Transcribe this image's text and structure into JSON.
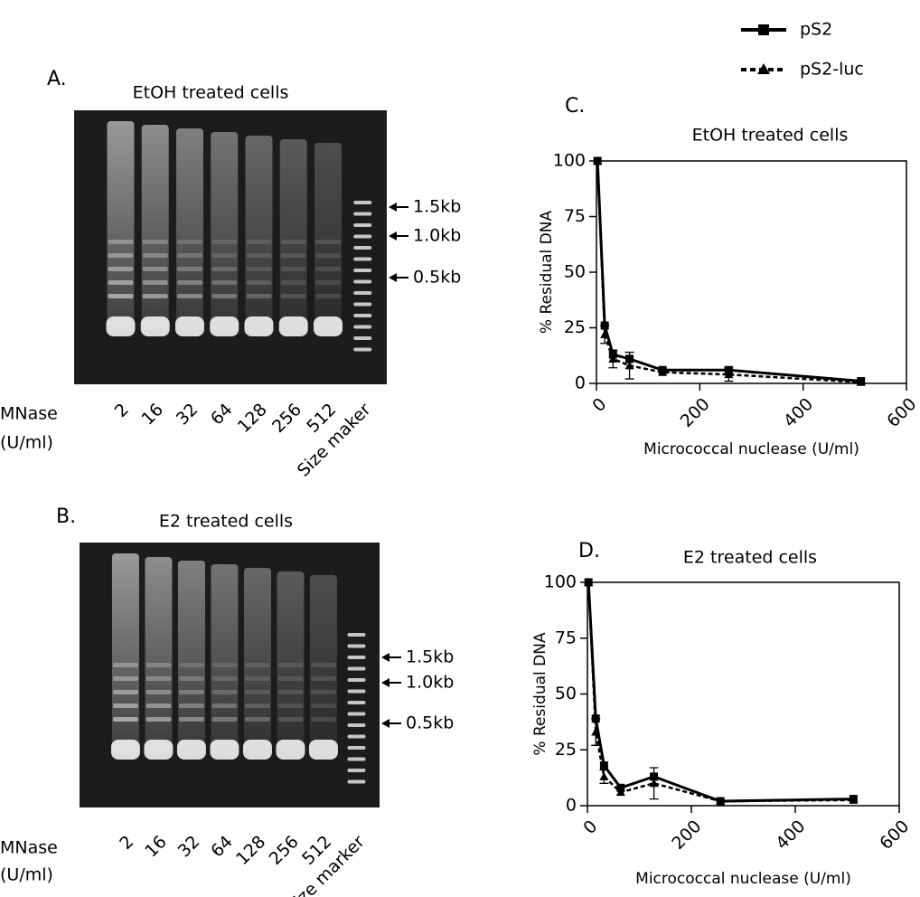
{
  "gels": [
    {
      "label": "A.",
      "title": "EtOH treated cells",
      "row_label": [
        "MNase",
        "(U/ml)"
      ],
      "lanes": [
        "2",
        "16",
        "32",
        "64",
        "128",
        "256",
        "512",
        "Size maker"
      ],
      "markers": [
        "1.5kb",
        "1.0kb",
        "0.5kb"
      ]
    },
    {
      "label": "B.",
      "title": "E2 treated cells",
      "row_label": [
        "MNase",
        "(U/ml)"
      ],
      "lanes": [
        "2",
        "16",
        "32",
        "64",
        "128",
        "256",
        "512",
        "Size marker"
      ],
      "markers": [
        "1.5kb",
        "1.0kb",
        "0.5kb"
      ]
    }
  ],
  "chart_data": [
    {
      "type": "line",
      "label": "C.",
      "title": "EtOH treated cells",
      "xlabel": "Micrococcal nuclease (U/ml)",
      "ylabel": "% Residual DNA",
      "x": [
        2,
        16,
        32,
        64,
        128,
        256,
        512
      ],
      "series": [
        {
          "name": "pS2",
          "color": "#000000",
          "linestyle": "solid",
          "marker": "square",
          "values": [
            100,
            26,
            13,
            11,
            6,
            6,
            1
          ]
        },
        {
          "name": "pS2-luc",
          "color": "#000000",
          "linestyle": "dashed",
          "marker": "triangle",
          "values": [
            100,
            22,
            11,
            8,
            5,
            4,
            0.5
          ],
          "errors": [
            null,
            4,
            4,
            6,
            null,
            3,
            null
          ]
        }
      ],
      "xlim": [
        0,
        600
      ],
      "xticks": [
        0,
        200,
        400,
        600
      ],
      "ylim": [
        0,
        100
      ],
      "yticks": [
        0,
        25,
        50,
        75,
        100
      ]
    },
    {
      "type": "line",
      "label": "D.",
      "title": "E2 treated cells",
      "xlabel": "Micrococcal nuclease (U/ml)",
      "ylabel": "% Residual DNA",
      "x": [
        2,
        16,
        32,
        64,
        128,
        256,
        512
      ],
      "series": [
        {
          "color": "#000000",
          "linestyle": "solid",
          "marker": "square",
          "values": [
            100,
            39,
            18,
            8,
            13,
            2,
            3
          ]
        },
        {
          "color": "#000000",
          "linestyle": "dashed",
          "marker": "triangle",
          "values": [
            100,
            33,
            13,
            6,
            10,
            2,
            2.5
          ],
          "errors": [
            null,
            6,
            3,
            null,
            7,
            null,
            null
          ]
        }
      ],
      "xlim": [
        0,
        600
      ],
      "xticks": [
        0,
        200,
        400,
        600
      ],
      "ylim": [
        0,
        100
      ],
      "yticks": [
        0,
        25,
        50,
        75,
        100
      ]
    }
  ]
}
